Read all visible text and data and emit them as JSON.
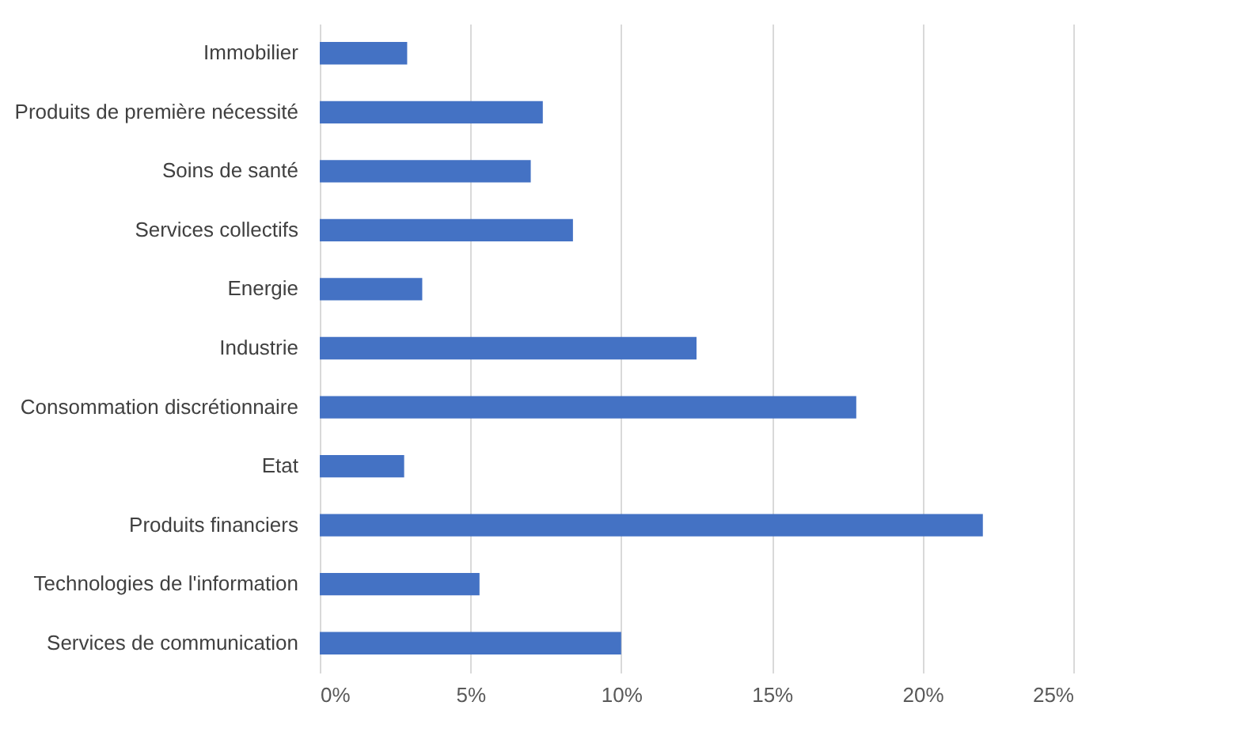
{
  "chart_data": {
    "type": "bar",
    "orientation": "horizontal",
    "categories": [
      "Immobilier",
      "Produits de première nécessité",
      "Soins de santé",
      "Services collectifs",
      "Energie",
      "Industrie",
      "Consommation discrétionnaire",
      "Etat",
      "Produits financiers",
      "Technologies de l'information",
      "Services de communication"
    ],
    "values": [
      2.9,
      7.4,
      7.0,
      8.4,
      3.4,
      12.5,
      17.8,
      2.8,
      22.0,
      5.3,
      10.0
    ],
    "color": "#4472c4",
    "xlim": [
      0,
      25
    ],
    "xticks": [
      {
        "value": 0,
        "label": "0%"
      },
      {
        "value": 5,
        "label": "5%"
      },
      {
        "value": 10,
        "label": "10%"
      },
      {
        "value": 15,
        "label": "15%"
      },
      {
        "value": 20,
        "label": "20%"
      },
      {
        "value": 25,
        "label": "25%"
      }
    ],
    "grid": "x"
  }
}
